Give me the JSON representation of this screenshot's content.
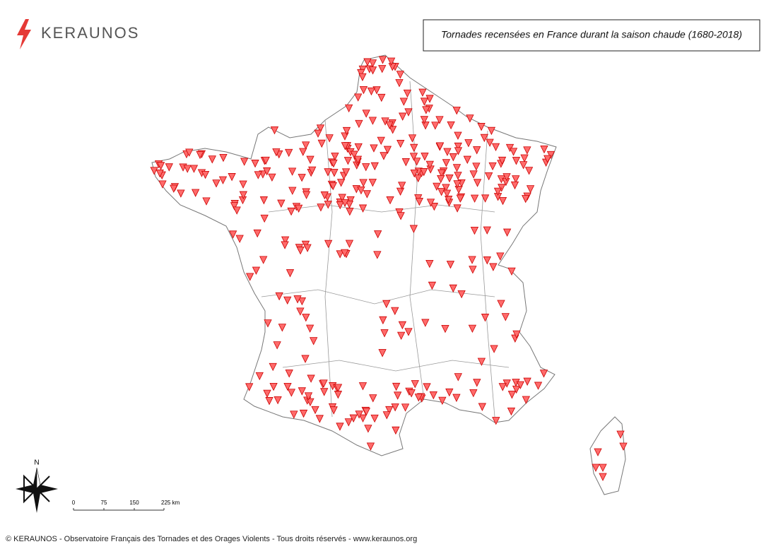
{
  "header": {
    "logo": "KERAUNOS",
    "title": "Tornades recensées en France durant la saison chaude (1680-2018)"
  },
  "north": "N",
  "scale": {
    "labels": [
      "0",
      "75",
      "150",
      "225 km"
    ]
  },
  "footer": "© KERAUNOS - Observatoire Français des Tornades et des Orages Violents - Tous droits réservés - www.keraunos.org"
}
